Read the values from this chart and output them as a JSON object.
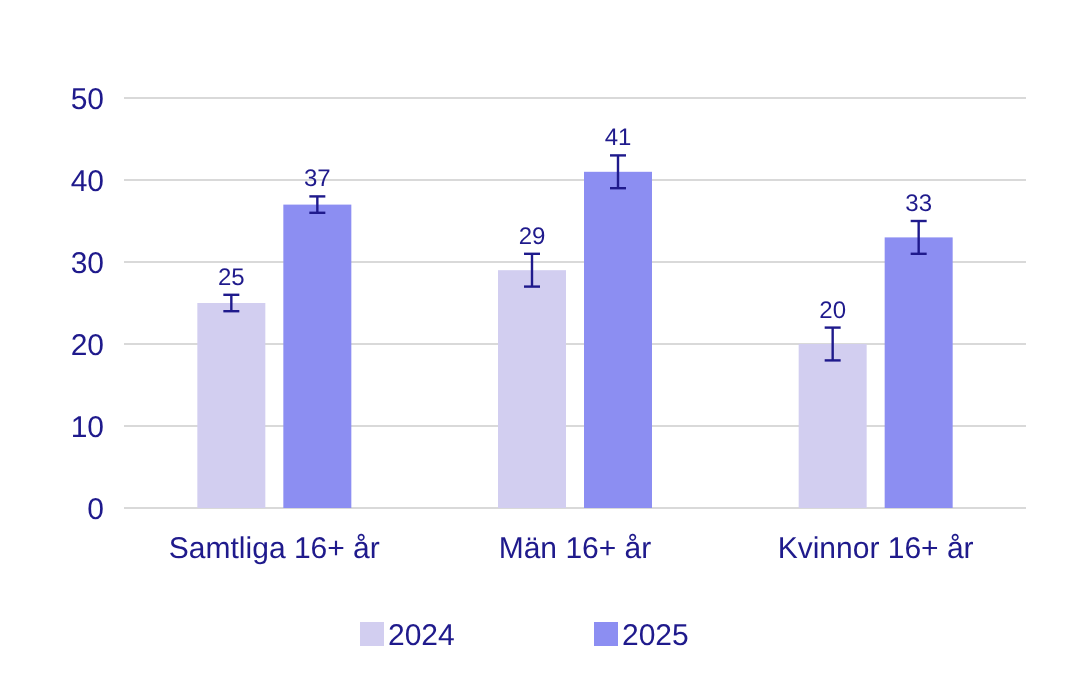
{
  "chart_data": {
    "type": "bar",
    "categories": [
      "Samtliga 16+ år",
      "Män 16+ år",
      "Kvinnor 16+ år"
    ],
    "series": [
      {
        "name": "2024",
        "color": "#d2cef0",
        "values": [
          25,
          29,
          20
        ],
        "errors": [
          1,
          2,
          2
        ]
      },
      {
        "name": "2025",
        "color": "#8c8ef2",
        "values": [
          37,
          41,
          33
        ],
        "errors": [
          1,
          2,
          2
        ]
      }
    ],
    "ylim": [
      0,
      50
    ],
    "yticks": [
      0,
      10,
      20,
      30,
      40,
      50
    ],
    "grid": "y",
    "legend": "bottom",
    "data_labels": true
  }
}
